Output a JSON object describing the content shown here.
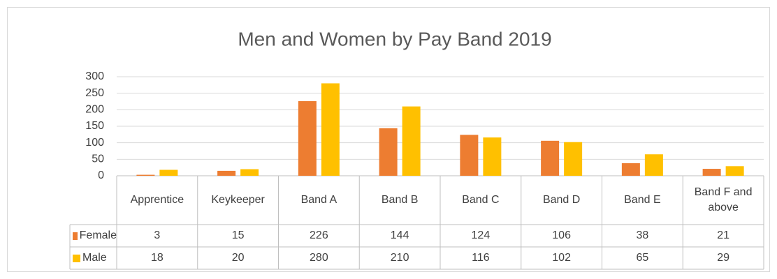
{
  "chart_data": {
    "type": "bar",
    "title": "Men and Women by Pay Band 2019",
    "categories": [
      "Apprentice",
      "Keykeeper",
      "Band A",
      "Band B",
      "Band C",
      "Band D",
      "Band E",
      "Band F and above"
    ],
    "series": [
      {
        "name": "Female",
        "color": "#ED7D31",
        "values": [
          3,
          15,
          226,
          144,
          124,
          106,
          38,
          21
        ]
      },
      {
        "name": "Male",
        "color": "#FFC000",
        "values": [
          18,
          20,
          280,
          210,
          116,
          102,
          65,
          29
        ]
      }
    ],
    "ylim": [
      0,
      300
    ],
    "yticks": [
      0,
      50,
      100,
      150,
      200,
      250,
      300
    ],
    "grid": true,
    "legend": "table"
  }
}
